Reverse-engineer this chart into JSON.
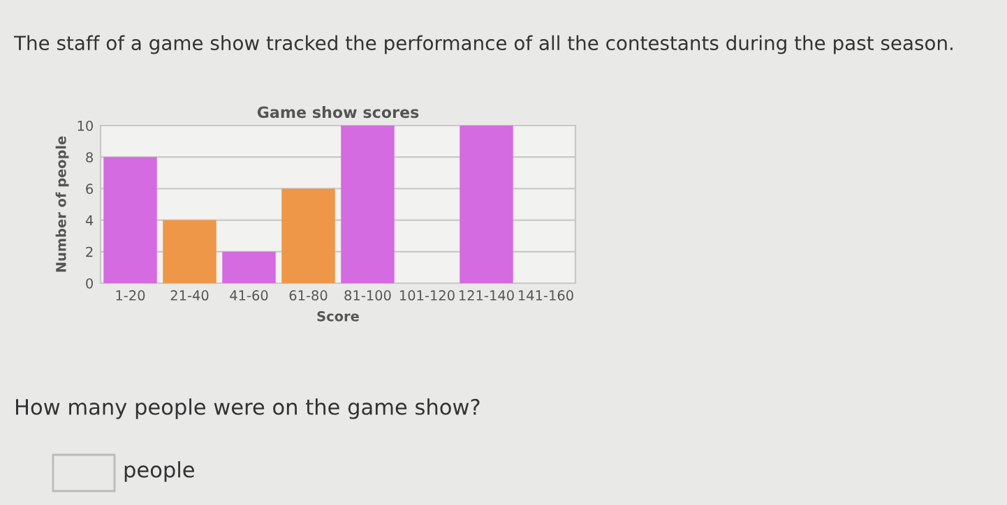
{
  "chart_data": {
    "type": "bar",
    "title": "Game show scores",
    "xlabel": "Score",
    "ylabel": "Number of people",
    "categories": [
      "1-20",
      "21-40",
      "41-60",
      "61-80",
      "81-100",
      "101-120",
      "121-140",
      "141-160"
    ],
    "values": [
      8,
      4,
      2,
      6,
      10,
      0,
      10,
      0
    ],
    "colors": [
      "#d56be0",
      "#ee9748",
      "#d56be0",
      "#ee9748",
      "#d56be0",
      "#d56be0",
      "#d56be0",
      "#d56be0"
    ],
    "ylim": [
      0,
      10
    ],
    "yticks": [
      0,
      2,
      4,
      6,
      8,
      10
    ],
    "grid": "y",
    "annotations": [
      "The staff of a game show tracked the performance of all the contestants during the past season.",
      "How many people were on the game show?",
      "people"
    ]
  }
}
